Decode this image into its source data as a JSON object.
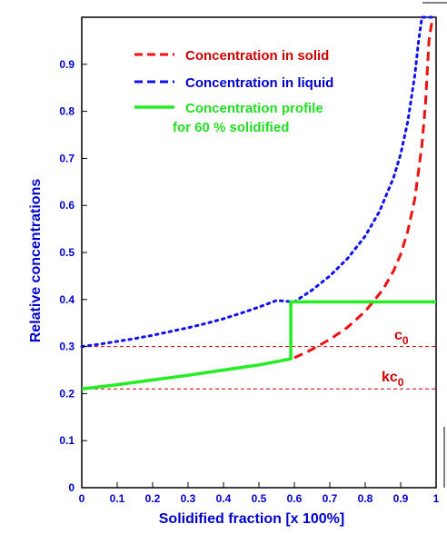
{
  "chart_data": {
    "type": "line",
    "xlabel": "Solidified fraction [x 100%]",
    "ylabel": "Relative concentrations",
    "xlim": [
      0,
      1
    ],
    "ylim": [
      0,
      1
    ],
    "xticks": [
      "0",
      "0.1",
      "0.2",
      "0.3",
      "0.4",
      "0.5",
      "0.6",
      "0.7",
      "0.8",
      "0.9",
      "1"
    ],
    "yticks": [
      "0",
      "0.1",
      "0.2",
      "0.3",
      "0.4",
      "0.5",
      "0.6",
      "0.7",
      "0.8",
      "0.9"
    ],
    "grid": false,
    "legend_position": "top-right",
    "series": [
      {
        "name": "Concentration in solid",
        "style": "dashed",
        "color": "#ee1111",
        "x": [
          0.6,
          0.65,
          0.7,
          0.75,
          0.8,
          0.85,
          0.88,
          0.9,
          0.92,
          0.94,
          0.96,
          0.97,
          0.98,
          0.99
        ],
        "y": [
          0.276,
          0.294,
          0.315,
          0.341,
          0.375,
          0.421,
          0.461,
          0.496,
          0.545,
          0.614,
          0.728,
          0.816,
          0.95,
          1.0
        ]
      },
      {
        "name": "Concentration in liquid",
        "style": "dotted",
        "color": "#1111ee",
        "x": [
          0,
          0.05,
          0.1,
          0.15,
          0.2,
          0.25,
          0.3,
          0.35,
          0.4,
          0.45,
          0.5,
          0.55,
          0.6,
          0.65,
          0.7,
          0.75,
          0.8,
          0.84,
          0.88,
          0.9,
          0.92,
          0.94,
          0.95,
          0.96,
          0.97,
          0.98,
          0.99
        ],
        "y": [
          0.3,
          0.305,
          0.311,
          0.317,
          0.324,
          0.332,
          0.34,
          0.349,
          0.359,
          0.371,
          0.384,
          0.398,
          0.395,
          0.42,
          0.45,
          0.487,
          0.535,
          0.587,
          0.659,
          0.709,
          0.778,
          0.877,
          0.946,
          1.0,
          1.0,
          1.0,
          1.0
        ]
      },
      {
        "name": "Concentration profile for 60 % solidified",
        "legend_lines": [
          "Concentration profile",
          "for 60 % solidified"
        ],
        "style": "solid",
        "color": "#22ee22",
        "x": [
          0,
          0.1,
          0.2,
          0.3,
          0.4,
          0.5,
          0.55,
          0.59,
          0.59,
          0.6,
          1.0
        ],
        "y": [
          0.21,
          0.219,
          0.229,
          0.239,
          0.25,
          0.261,
          0.268,
          0.274,
          0.395,
          0.395,
          0.395
        ]
      }
    ],
    "reference_lines": [
      {
        "label_main": "c",
        "label_sub": "0",
        "y": 0.3,
        "color": "#cc0000",
        "style": "dashed"
      },
      {
        "label_main": "kc",
        "label_sub": "0",
        "y": 0.21,
        "color": "#cc0000",
        "style": "dashed"
      }
    ]
  }
}
